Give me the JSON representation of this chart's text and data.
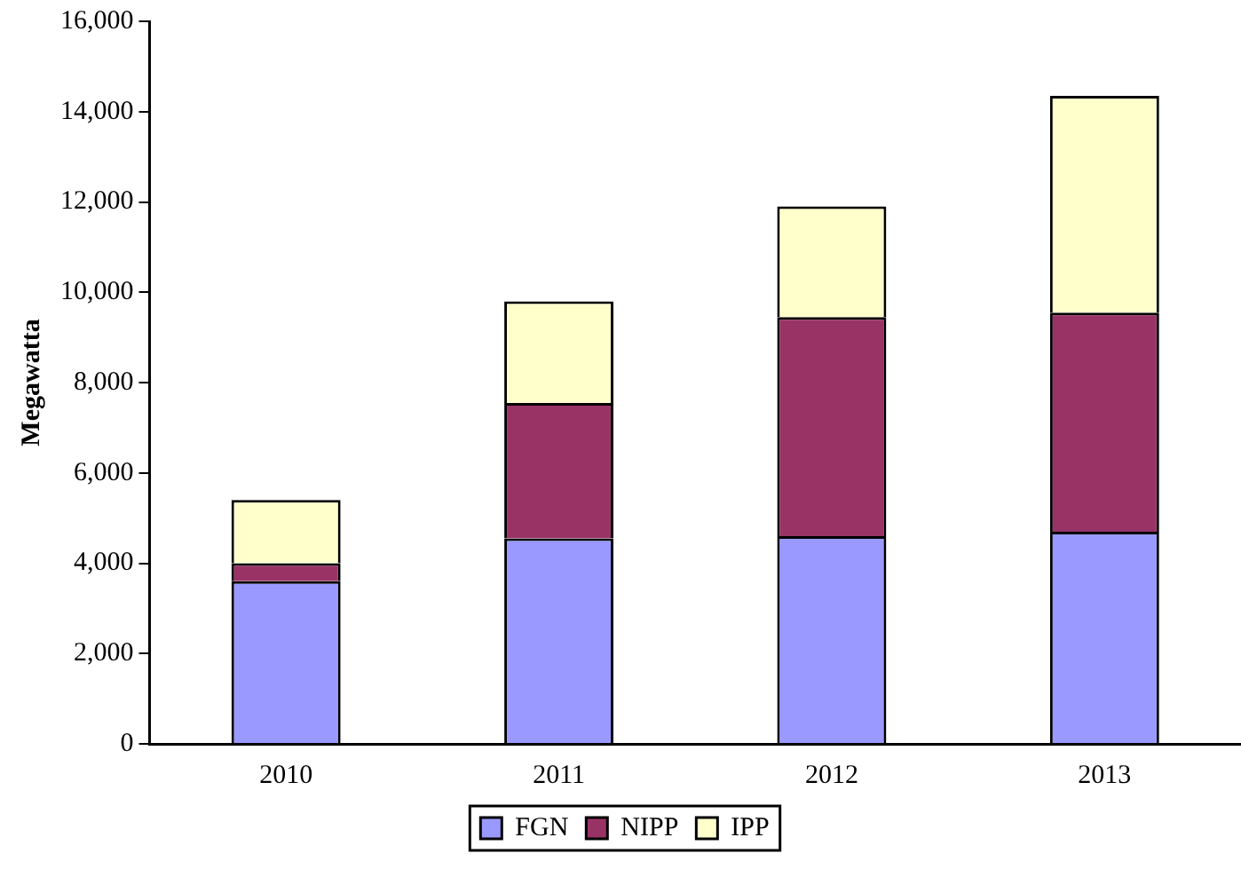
{
  "chart_data": {
    "type": "bar",
    "stacked": true,
    "ylabel": "Megawatta",
    "categories": [
      "2010",
      "2011",
      "2012",
      "2013"
    ],
    "series": [
      {
        "name": "FGN",
        "color": "#9999ff",
        "values": [
          3600,
          4550,
          4600,
          4700
        ]
      },
      {
        "name": "NIPP",
        "color": "#993366",
        "values": [
          400,
          3000,
          4850,
          4850
        ]
      },
      {
        "name": "IPP",
        "color": "#ffffcc",
        "values": [
          1400,
          2250,
          2450,
          4800
        ]
      }
    ],
    "ylim": [
      0,
      16000
    ],
    "yticks": [
      {
        "value": 0,
        "label": "0"
      },
      {
        "value": 2000,
        "label": "2,000"
      },
      {
        "value": 4000,
        "label": "4,000"
      },
      {
        "value": 6000,
        "label": "6,000"
      },
      {
        "value": 8000,
        "label": "8,000"
      },
      {
        "value": 10000,
        "label": "10,000"
      },
      {
        "value": 12000,
        "label": "12,000"
      },
      {
        "value": 14000,
        "label": "14,000"
      },
      {
        "value": 16000,
        "label": "16,000"
      }
    ],
    "grid": false,
    "legend": "bottom"
  }
}
